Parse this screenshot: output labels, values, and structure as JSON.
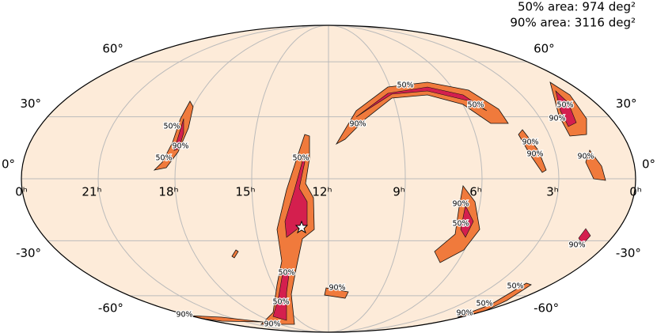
{
  "legend": {
    "area50": "50% area: 974 deg²",
    "area90": "90% area: 3116 deg²"
  },
  "grid": {
    "lat_ticks": [
      {
        "value": 60,
        "label": "60°"
      },
      {
        "value": 30,
        "label": "30°"
      },
      {
        "value": 0,
        "label": "0°"
      },
      {
        "value": -30,
        "label": "-30°"
      },
      {
        "value": -60,
        "label": "-60°"
      }
    ],
    "ra_ticks": [
      {
        "value": 24,
        "label": "0ʰ"
      },
      {
        "value": 21,
        "label": "21ʰ"
      },
      {
        "value": 18,
        "label": "18ʰ"
      },
      {
        "value": 15,
        "label": "15ʰ"
      },
      {
        "value": 12,
        "label": "12ʰ"
      },
      {
        "value": 9,
        "label": "9ʰ"
      },
      {
        "value": 6,
        "label": "6ʰ"
      },
      {
        "value": 3,
        "label": "3ʰ"
      },
      {
        "value": 0,
        "label": "0ʰ"
      }
    ]
  },
  "contour_labels": [
    "50%",
    "50%",
    "90%",
    "50%",
    "90%",
    "50%",
    "50%",
    "90%",
    "90%",
    "50%",
    "90%",
    "90%",
    "90%",
    "50%",
    "90%",
    "90%",
    "50%",
    "50%",
    "90%",
    "90%",
    "50%",
    "50%",
    "90%"
  ]
}
